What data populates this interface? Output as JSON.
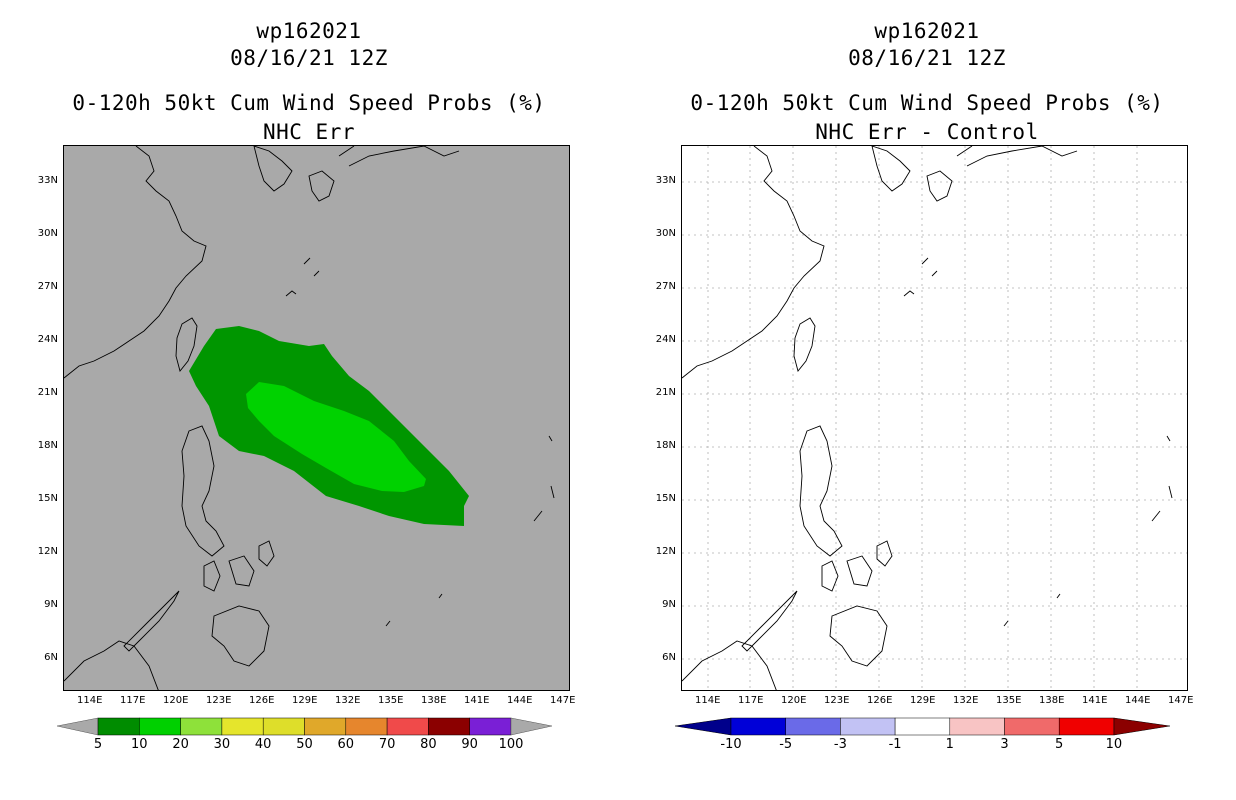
{
  "left_panel": {
    "storm_id": "wp162021",
    "datetime": "08/16/21 12Z",
    "product": "0-120h 50kt Cum Wind Speed Probs (%)",
    "subtitle": "NHC Err",
    "background_color": "#a9a9a9",
    "colorbar": {
      "colors": [
        "#008c00",
        "#00d000",
        "#8ee13a",
        "#e5e52c",
        "#dede2a",
        "#e0a82a",
        "#e6862d",
        "#f04a4a",
        "#8b0000",
        "#7a1fd6"
      ],
      "labels": [
        "5",
        "10",
        "20",
        "30",
        "40",
        "50",
        "60",
        "70",
        "80",
        "90",
        "100"
      ],
      "end_color": "#a9a9a9"
    }
  },
  "right_panel": {
    "storm_id": "wp162021",
    "datetime": "08/16/21 12Z",
    "product": "0-120h 50kt Cum Wind Speed Probs (%)",
    "subtitle": "NHC Err - Control",
    "background_color": "#ffffff",
    "colorbar": {
      "colors": [
        "#0000d8",
        "#6a6ae8",
        "#c2c2f4",
        "#ffffff",
        "#f8c4c4",
        "#f06a6a",
        "#f00000"
      ],
      "labels": [
        "-10",
        "-5",
        "-3",
        "-1",
        "1",
        "3",
        "5",
        "10"
      ],
      "left_end_color": "#00008b",
      "right_end_color": "#8b0000"
    }
  },
  "axes": {
    "x_ticks": [
      "114E",
      "117E",
      "120E",
      "123E",
      "126E",
      "129E",
      "132E",
      "135E",
      "138E",
      "141E",
      "144E",
      "147E"
    ],
    "y_ticks": [
      "33N",
      "30N",
      "27N",
      "24N",
      "21N",
      "18N",
      "15N",
      "12N",
      "9N",
      "6N"
    ]
  },
  "colors": {
    "prob_outer": "#009600",
    "prob_inner": "#00d200"
  }
}
